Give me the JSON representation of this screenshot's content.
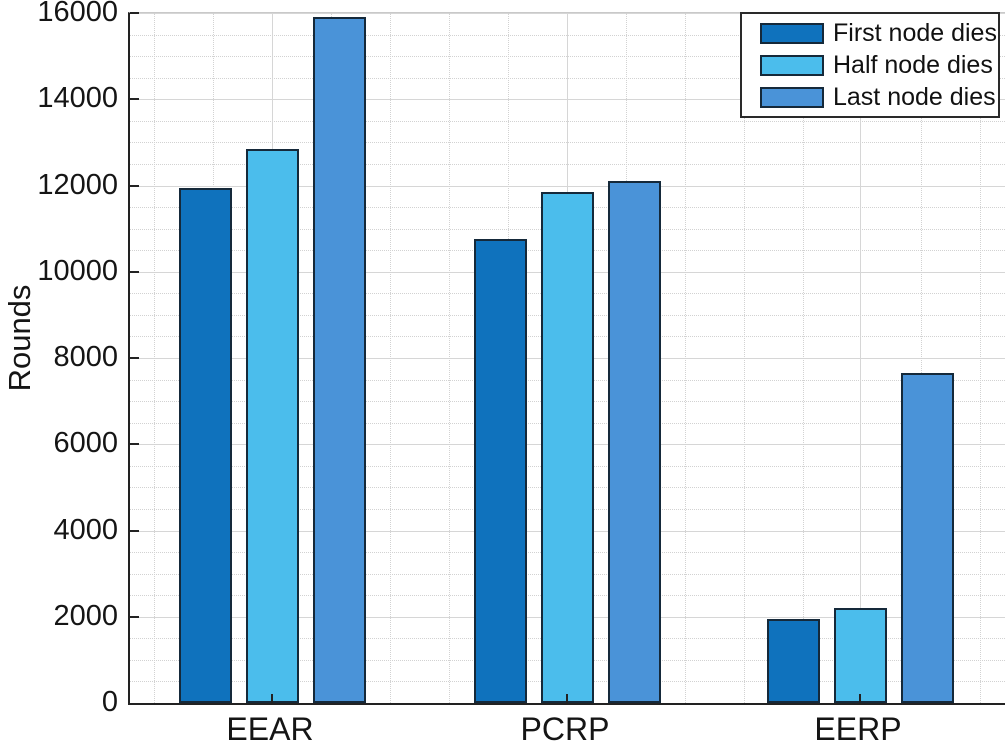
{
  "chart_data": {
    "type": "bar",
    "title": "",
    "xlabel": "",
    "ylabel": "Rounds",
    "categories": [
      "EEAR",
      "PCRP",
      "EERP"
    ],
    "series": [
      {
        "name": "First node dies",
        "color": "#0F72BD",
        "values": [
          11950,
          10750,
          1950
        ]
      },
      {
        "name": "Half node dies",
        "color": "#4BBDEC",
        "values": [
          12850,
          11850,
          2200
        ]
      },
      {
        "name": "Last node dies",
        "color": "#4A93D8",
        "values": [
          15900,
          12100,
          7650
        ]
      }
    ],
    "ylim": [
      0,
      16000
    ],
    "ytick_step": 2000,
    "ytick_labels": [
      "0",
      "2000",
      "4000",
      "6000",
      "8000",
      "10000",
      "12000",
      "14000",
      "16000"
    ],
    "minor_grid_step": 500,
    "grid": "major-solid + minor-dotted",
    "legend_position": "top-right",
    "bar_edge_color": "#15293A"
  }
}
